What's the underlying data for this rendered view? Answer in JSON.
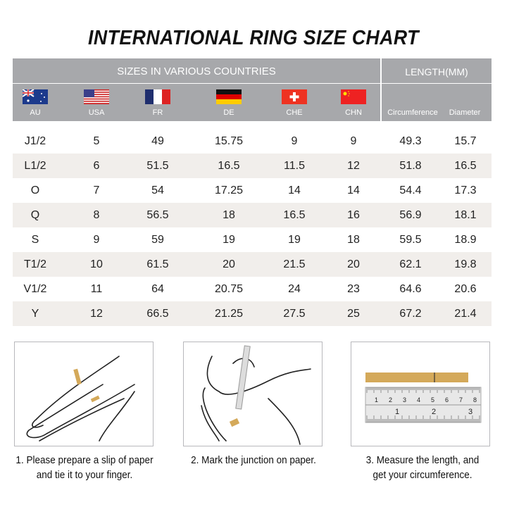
{
  "title": "INTERNATIONAL RING SIZE CHART",
  "header": {
    "group_sizes": "SIZES IN VARIOUS COUNTRIES",
    "group_length": "LENGTH(MM)",
    "countries": [
      {
        "code": "AU",
        "flag": "australia-flag"
      },
      {
        "code": "USA",
        "flag": "usa-flag"
      },
      {
        "code": "FR",
        "flag": "france-flag"
      },
      {
        "code": "DE",
        "flag": "germany-flag"
      },
      {
        "code": "CHE",
        "flag": "switzerland-flag"
      },
      {
        "code": "CHN",
        "flag": "china-flag"
      }
    ],
    "circumference": "Circumference",
    "diameter": "Diameter"
  },
  "rows": [
    [
      "J1/2",
      "5",
      "49",
      "15.75",
      "9",
      "9",
      "49.3",
      "15.7"
    ],
    [
      "L1/2",
      "6",
      "51.5",
      "16.5",
      "11.5",
      "12",
      "51.8",
      "16.5"
    ],
    [
      "O",
      "7",
      "54",
      "17.25",
      "14",
      "14",
      "54.4",
      "17.3"
    ],
    [
      "Q",
      "8",
      "56.5",
      "18",
      "16.5",
      "16",
      "56.9",
      "18.1"
    ],
    [
      "S",
      "9",
      "59",
      "19",
      "19",
      "18",
      "59.5",
      "18.9"
    ],
    [
      "T1/2",
      "10",
      "61.5",
      "20",
      "21.5",
      "20",
      "62.1",
      "19.8"
    ],
    [
      "V1/2",
      "11",
      "64",
      "20.75",
      "24",
      "23",
      "64.6",
      "20.6"
    ],
    [
      "Y",
      "12",
      "66.5",
      "21.25",
      "27.5",
      "25",
      "67.2",
      "21.4"
    ]
  ],
  "steps": [
    {
      "line1": "1. Please prepare a slip of paper",
      "line2": "and tie it to your finger."
    },
    {
      "line1": "2. Mark the junction on paper.",
      "line2": ""
    },
    {
      "line1": "3. Measure the length, and",
      "line2": "get your circumference."
    }
  ],
  "ruler": {
    "top_ticks": [
      "1",
      "2",
      "3",
      "4",
      "5",
      "6",
      "7",
      "8"
    ],
    "bottom_ticks": [
      "1",
      "2",
      "3"
    ]
  },
  "colors": {
    "header": "#a7a8ab",
    "alt_row": "#f1eeeb",
    "paper": "#d4a95a"
  }
}
